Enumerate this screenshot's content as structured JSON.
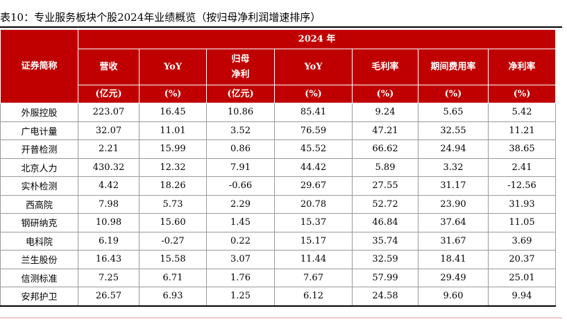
{
  "header": {
    "title": "表10：专业服务板块个股2024年业绩概览（按归母净利润增速排序）"
  },
  "table": {
    "first_column": "证券简称",
    "group_header": "2024 年",
    "columns": [
      {
        "name": "营收",
        "unit": "(亿元)"
      },
      {
        "name": "YoY",
        "unit": "(%)"
      },
      {
        "name": "归母\n净利",
        "unit": "(亿元)"
      },
      {
        "name": "YoY",
        "unit": "(%)"
      },
      {
        "name": "毛利率",
        "unit": "(%)"
      },
      {
        "name": "期间费用率",
        "unit": "(%)"
      },
      {
        "name": "净利率",
        "unit": "(%)"
      }
    ],
    "rows": [
      [
        "外服控股",
        "223.07",
        "16.45",
        "10.86",
        "85.41",
        "9.24",
        "5.65",
        "5.42"
      ],
      [
        "广电计量",
        "32.07",
        "11.01",
        "3.52",
        "76.59",
        "47.21",
        "32.55",
        "11.21"
      ],
      [
        "开普检测",
        "2.21",
        "15.99",
        "0.86",
        "45.52",
        "66.62",
        "24.94",
        "38.65"
      ],
      [
        "北京人力",
        "430.32",
        "12.32",
        "7.91",
        "44.42",
        "5.89",
        "3.32",
        "2.41"
      ],
      [
        "实朴检测",
        "4.42",
        "18.26",
        "-0.66",
        "29.67",
        "27.55",
        "31.17",
        "-12.56"
      ],
      [
        "西高院",
        "7.98",
        "5.73",
        "2.29",
        "20.78",
        "52.72",
        "23.90",
        "31.93"
      ],
      [
        "钢研纳克",
        "10.98",
        "15.60",
        "1.45",
        "15.37",
        "46.84",
        "37.64",
        "11.05"
      ],
      [
        "电科院",
        "6.19",
        "-0.27",
        "0.22",
        "15.17",
        "35.74",
        "31.67",
        "3.69"
      ],
      [
        "兰生股份",
        "16.43",
        "15.58",
        "3.07",
        "11.44",
        "32.59",
        "18.41",
        "20.37"
      ],
      [
        "信测标准",
        "7.25",
        "6.71",
        "1.76",
        "7.67",
        "57.99",
        "29.49",
        "25.01"
      ],
      [
        "安邦护卫",
        "26.57",
        "6.93",
        "1.25",
        "6.12",
        "24.58",
        "9.60",
        "9.94"
      ]
    ]
  }
}
